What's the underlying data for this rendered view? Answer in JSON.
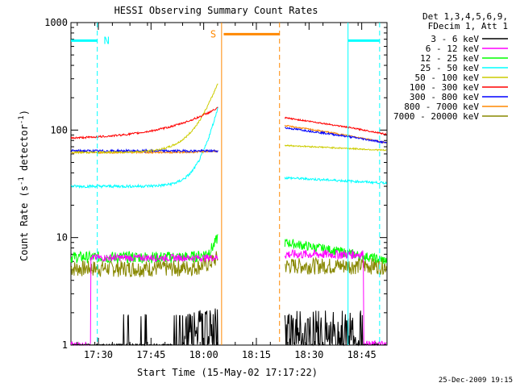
{
  "chart_data": {
    "type": "line",
    "title": "HESSI Observing Summary Count Rates",
    "xlabel": "Start Time (15-May-02 17:17:22)",
    "ylabel_main": "Count Rate (s",
    "ylabel_sup1": "-1",
    "ylabel_mid": " detector",
    "ylabel_sup2": "-1",
    "ylabel_end": ")",
    "y_scale": "log",
    "ylim": [
      1,
      1000
    ],
    "xlim_minutes": [
      17.37,
      18.87
    ],
    "x_ticks": [
      {
        "label": "17:30",
        "value": 17.5
      },
      {
        "label": "17:45",
        "value": 17.75
      },
      {
        "label": "18:00",
        "value": 18.0
      },
      {
        "label": "18:15",
        "value": 18.25
      },
      {
        "label": "18:30",
        "value": 18.5
      },
      {
        "label": "18:45",
        "value": 18.75
      }
    ],
    "y_ticks": [
      {
        "label": "1",
        "value": 1
      },
      {
        "label": "10",
        "value": 10
      },
      {
        "label": "100",
        "value": 100
      },
      {
        "label": "1000",
        "value": 1000
      }
    ],
    "legend_header": [
      "Det 1,3,4,5,6,9,",
      "FDecim 1, Att 1"
    ],
    "legend_position": "right",
    "series": [
      {
        "name": "3 - 6 keV",
        "color": "#000000"
      },
      {
        "name": "6 - 12 keV",
        "color": "#ff00ff"
      },
      {
        "name": "12 - 25 keV",
        "color": "#00ff00"
      },
      {
        "name": "25 - 50 keV",
        "color": "#00ffff"
      },
      {
        "name": "50 - 100 keV",
        "color": "#cccc00"
      },
      {
        "name": "100 - 300 keV",
        "color": "#ff0000"
      },
      {
        "name": "300 - 800 keV",
        "color": "#0000ff"
      },
      {
        "name": "800 - 7000 keV",
        "color": "#ff8800"
      },
      {
        "name": "7000 - 20000 keV",
        "color": "#888800"
      }
    ],
    "annotations": [
      {
        "label": "N",
        "color": "#00ffff"
      },
      {
        "label": "S",
        "color": "#ff8800"
      }
    ],
    "timestamp": "25-Dec-2009 19:15"
  }
}
